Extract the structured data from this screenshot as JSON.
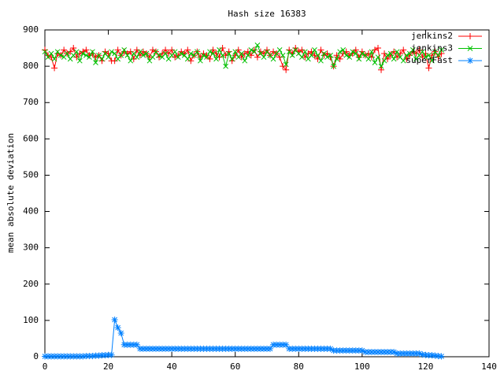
{
  "chart_data": {
    "type": "line",
    "title": "Hash size 16383",
    "y_label": "mean absolute deviation",
    "xlim": [
      0,
      140
    ],
    "xticks": [
      0,
      20,
      40,
      60,
      80,
      100,
      120,
      140
    ],
    "ylim": [
      0,
      900
    ],
    "yticks": [
      0,
      100,
      200,
      300,
      400,
      500,
      600,
      700,
      800,
      900
    ],
    "legend": "top-right",
    "x": [
      0,
      1,
      2,
      3,
      4,
      5,
      6,
      7,
      8,
      9,
      10,
      11,
      12,
      13,
      14,
      15,
      16,
      17,
      18,
      19,
      20,
      21,
      22,
      23,
      24,
      25,
      26,
      27,
      28,
      29,
      30,
      31,
      32,
      33,
      34,
      35,
      36,
      37,
      38,
      39,
      40,
      41,
      42,
      43,
      44,
      45,
      46,
      47,
      48,
      49,
      50,
      51,
      52,
      53,
      54,
      55,
      56,
      57,
      58,
      59,
      60,
      61,
      62,
      63,
      64,
      65,
      66,
      67,
      68,
      69,
      70,
      71,
      72,
      73,
      74,
      75,
      76,
      77,
      78,
      79,
      80,
      81,
      82,
      83,
      84,
      85,
      86,
      87,
      88,
      89,
      90,
      91,
      92,
      93,
      94,
      95,
      96,
      97,
      98,
      99,
      100,
      101,
      102,
      103,
      104,
      105,
      106,
      107,
      108,
      109,
      110,
      111,
      112,
      113,
      114,
      115,
      116,
      117,
      118,
      119,
      120,
      121,
      122,
      123,
      124,
      125
    ],
    "series": [
      {
        "name": "jenkins2",
        "color": "#ff0000",
        "marker": "plus",
        "values": [
          845,
          830,
          825,
          795,
          835,
          830,
          845,
          835,
          840,
          850,
          825,
          835,
          840,
          845,
          830,
          835,
          825,
          830,
          815,
          840,
          835,
          815,
          815,
          845,
          830,
          840,
          835,
          840,
          820,
          845,
          830,
          840,
          835,
          825,
          845,
          840,
          825,
          835,
          845,
          835,
          845,
          825,
          830,
          840,
          835,
          845,
          815,
          830,
          840,
          825,
          835,
          830,
          820,
          845,
          835,
          825,
          850,
          830,
          840,
          815,
          830,
          845,
          825,
          835,
          840,
          830,
          845,
          825,
          840,
          835,
          845,
          830,
          840,
          835,
          825,
          800,
          790,
          845,
          835,
          850,
          840,
          845,
          825,
          835,
          840,
          830,
          820,
          845,
          830,
          835,
          825,
          800,
          830,
          820,
          835,
          840,
          830,
          835,
          845,
          825,
          840,
          830,
          835,
          825,
          845,
          850,
          790,
          835,
          820,
          830,
          840,
          825,
          835,
          845,
          820,
          830,
          840,
          835,
          845,
          825,
          835,
          795,
          830,
          840,
          825,
          835
        ]
      },
      {
        "name": "jenkins3",
        "color": "#00c000",
        "marker": "cross",
        "values": [
          840,
          825,
          835,
          820,
          840,
          830,
          825,
          835,
          820,
          830,
          840,
          815,
          835,
          830,
          825,
          840,
          810,
          830,
          820,
          835,
          825,
          840,
          835,
          820,
          830,
          845,
          830,
          815,
          835,
          825,
          840,
          830,
          835,
          815,
          825,
          840,
          830,
          825,
          835,
          820,
          830,
          840,
          825,
          835,
          830,
          820,
          835,
          830,
          840,
          815,
          830,
          825,
          840,
          835,
          820,
          845,
          830,
          800,
          835,
          820,
          840,
          825,
          835,
          815,
          830,
          845,
          840,
          858,
          835,
          825,
          840,
          830,
          820,
          835,
          845,
          830,
          805,
          840,
          830,
          845,
          835,
          825,
          840,
          820,
          830,
          845,
          830,
          815,
          835,
          825,
          830,
          800,
          820,
          840,
          845,
          830,
          825,
          840,
          835,
          820,
          835,
          830,
          820,
          840,
          810,
          825,
          800,
          815,
          830,
          835,
          820,
          840,
          825,
          815,
          830,
          835,
          845,
          820,
          830,
          840,
          825,
          830,
          815,
          840,
          830,
          845
        ]
      },
      {
        "name": "superFast",
        "color": "#0080ff",
        "marker": "star",
        "values": [
          1,
          1,
          1,
          1,
          1,
          1,
          1,
          1,
          1,
          1,
          1,
          1,
          1,
          2,
          2,
          2,
          3,
          3,
          4,
          4,
          5,
          5,
          102,
          80,
          65,
          33,
          33,
          33,
          33,
          33,
          22,
          22,
          22,
          22,
          22,
          22,
          22,
          22,
          22,
          22,
          22,
          22,
          22,
          22,
          22,
          22,
          22,
          22,
          22,
          22,
          22,
          22,
          22,
          22,
          22,
          22,
          22,
          22,
          22,
          22,
          22,
          22,
          22,
          22,
          22,
          22,
          22,
          22,
          22,
          22,
          22,
          22,
          33,
          33,
          33,
          33,
          33,
          22,
          22,
          22,
          22,
          22,
          22,
          22,
          22,
          22,
          22,
          22,
          22,
          22,
          22,
          17,
          17,
          17,
          17,
          17,
          17,
          17,
          17,
          17,
          17,
          13,
          13,
          13,
          13,
          13,
          13,
          13,
          13,
          13,
          13,
          9,
          9,
          9,
          9,
          9,
          9,
          9,
          9,
          6,
          5,
          4,
          4,
          3,
          2,
          1
        ]
      }
    ]
  }
}
